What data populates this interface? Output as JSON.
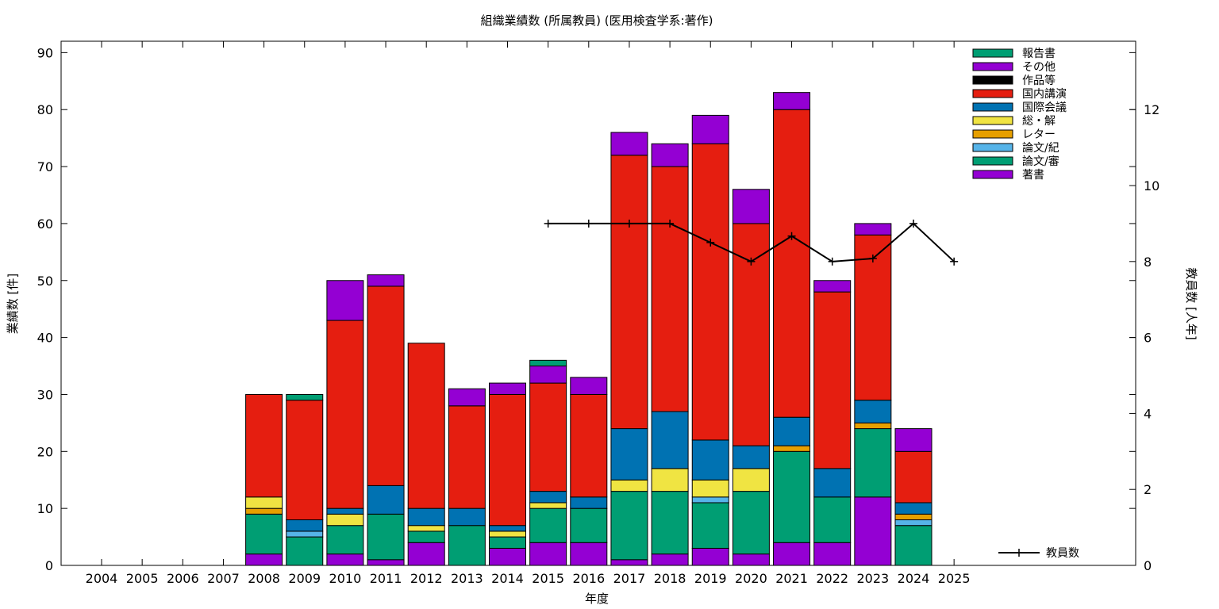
{
  "chart_data": {
    "type": "bar",
    "stacked": true,
    "title": "組織業績数 (所属教員) (医用検査学系:著作)",
    "xlabel": "年度",
    "ylabel": "業績数 [件]",
    "y2label": "教員数 [人年]",
    "ylim": [
      0,
      92
    ],
    "y2lim": [
      0,
      13.8
    ],
    "yticks": [
      0,
      10,
      20,
      30,
      40,
      50,
      60,
      70,
      80,
      90
    ],
    "y2ticks": [
      0,
      2,
      4,
      6,
      8,
      10,
      12
    ],
    "legend_position": "top-right",
    "categories": [
      "2004",
      "2005",
      "2006",
      "2007",
      "2008",
      "2009",
      "2010",
      "2011",
      "2012",
      "2013",
      "2014",
      "2015",
      "2016",
      "2017",
      "2018",
      "2019",
      "2020",
      "2021",
      "2022",
      "2023",
      "2024",
      "2025"
    ],
    "series": [
      {
        "name": "著書",
        "color": "#9400d3",
        "values": [
          0,
          0,
          0,
          0,
          2,
          0,
          2,
          1,
          4,
          0,
          3,
          4,
          4,
          1,
          2,
          3,
          2,
          4,
          4,
          12,
          0,
          0
        ]
      },
      {
        "name": "論文/審",
        "color": "#009e73",
        "values": [
          0,
          0,
          0,
          0,
          7,
          5,
          5,
          8,
          2,
          7,
          2,
          6,
          6,
          12,
          11,
          8,
          11,
          16,
          8,
          12,
          7,
          0
        ]
      },
      {
        "name": "論文/紀",
        "color": "#56b4e9",
        "values": [
          0,
          0,
          0,
          0,
          0,
          1,
          0,
          0,
          0,
          0,
          0,
          0,
          0,
          0,
          0,
          1,
          0,
          0,
          0,
          0,
          1,
          0
        ]
      },
      {
        "name": "レター",
        "color": "#e69f00",
        "values": [
          0,
          0,
          0,
          0,
          1,
          0,
          0,
          0,
          0,
          0,
          0,
          0,
          0,
          0,
          0,
          0,
          0,
          1,
          0,
          1,
          1,
          0
        ]
      },
      {
        "name": "総・解",
        "color": "#f0e442",
        "values": [
          0,
          0,
          0,
          0,
          2,
          0,
          2,
          0,
          1,
          0,
          1,
          1,
          0,
          2,
          4,
          3,
          4,
          0,
          0,
          0,
          0,
          0
        ]
      },
      {
        "name": "国際会議",
        "color": "#0072b2",
        "values": [
          0,
          0,
          0,
          0,
          0,
          2,
          1,
          5,
          3,
          3,
          1,
          2,
          2,
          9,
          10,
          7,
          4,
          5,
          5,
          4,
          2,
          0
        ]
      },
      {
        "name": "国内講演",
        "color": "#e51e10",
        "values": [
          0,
          0,
          0,
          0,
          18,
          21,
          33,
          35,
          29,
          18,
          23,
          19,
          18,
          48,
          43,
          52,
          39,
          54,
          31,
          29,
          9,
          0
        ]
      },
      {
        "name": "作品等",
        "color": "#000000",
        "values": [
          0,
          0,
          0,
          0,
          0,
          0,
          0,
          0,
          0,
          0,
          0,
          0,
          0,
          0,
          0,
          0,
          0,
          0,
          0,
          0,
          0,
          0
        ]
      },
      {
        "name": "その他",
        "color": "#9400d3",
        "values": [
          0,
          0,
          0,
          0,
          0,
          0,
          7,
          2,
          0,
          3,
          2,
          3,
          3,
          4,
          4,
          5,
          6,
          3,
          2,
          2,
          4,
          0
        ]
      },
      {
        "name": "報告書",
        "color": "#009e73",
        "values": [
          0,
          0,
          0,
          0,
          0,
          1,
          0,
          0,
          0,
          0,
          0,
          1,
          0,
          0,
          0,
          0,
          0,
          0,
          0,
          0,
          0,
          0
        ]
      }
    ],
    "line_series": {
      "name": "教員数",
      "color": "#000000",
      "axis": "y2",
      "x": [
        "2015",
        "2016",
        "2017",
        "2018",
        "2019",
        "2020",
        "2021",
        "2022",
        "2023",
        "2024",
        "2025"
      ],
      "values": [
        9,
        9,
        9,
        9,
        8.5,
        8,
        8.67,
        8,
        8.08,
        9,
        8
      ]
    }
  }
}
